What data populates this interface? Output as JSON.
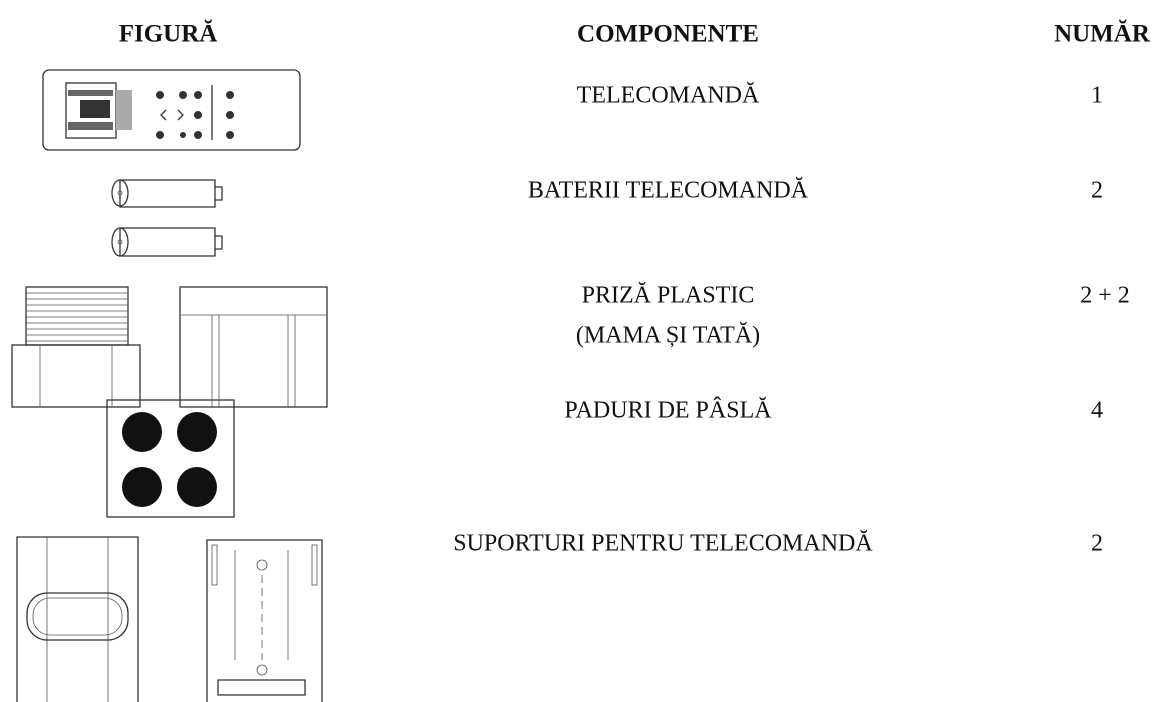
{
  "header": {
    "figure": "FIGURĂ",
    "components": "COMPONENTE",
    "count": "NUMĂR"
  },
  "rows": [
    {
      "component": [
        "TELECOMANDĂ"
      ],
      "count": 1
    },
    {
      "component": [
        "BATERII TELECOMANDĂ"
      ],
      "count": 2
    },
    {
      "component": [
        "PRIZĂ PLASTIC",
        "(MAMA ȘI TATĂ)"
      ],
      "count": "2 + 2"
    },
    {
      "component": [
        "PADURI DE PÂSLĂ"
      ],
      "count": 4
    },
    {
      "component": [
        "SUPORTURI PENTRU TELECOMANDĂ"
      ],
      "count": 2
    }
  ]
}
